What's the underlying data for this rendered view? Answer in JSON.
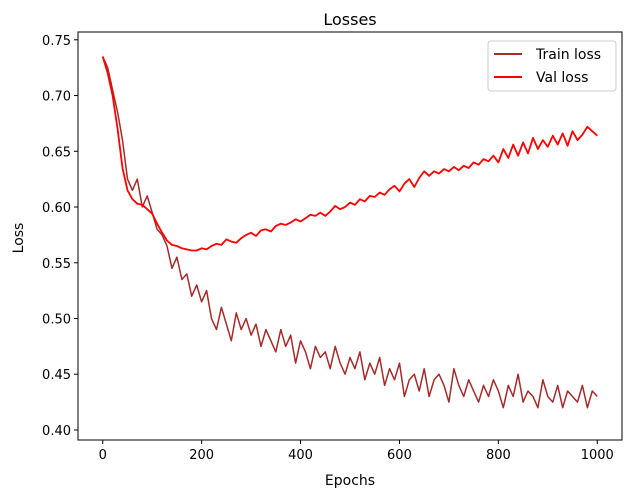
{
  "chart_data": {
    "type": "line",
    "title": "Losses",
    "xlabel": "Epochs",
    "ylabel": "Loss",
    "xlim": [
      -50,
      1050
    ],
    "ylim": [
      0.391,
      0.757
    ],
    "xticks": [
      0,
      200,
      400,
      600,
      800,
      1000
    ],
    "xtick_labels": [
      "0",
      "200",
      "400",
      "600",
      "800",
      "1000"
    ],
    "yticks": [
      0.4,
      0.45,
      0.5,
      0.55,
      0.6,
      0.65,
      0.7,
      0.75
    ],
    "ytick_labels": [
      "0.40",
      "0.45",
      "0.50",
      "0.55",
      "0.60",
      "0.65",
      "0.70",
      "0.75"
    ],
    "grid": false,
    "legend_position": "top-right",
    "x_start": 0,
    "x_step": 10,
    "series": [
      {
        "name": "Train loss",
        "color": "#a52a2a",
        "values": [
          0.735,
          0.725,
          0.705,
          0.685,
          0.66,
          0.625,
          0.615,
          0.625,
          0.6,
          0.61,
          0.595,
          0.58,
          0.575,
          0.565,
          0.545,
          0.555,
          0.535,
          0.54,
          0.52,
          0.53,
          0.515,
          0.525,
          0.5,
          0.49,
          0.51,
          0.495,
          0.48,
          0.505,
          0.49,
          0.5,
          0.485,
          0.495,
          0.475,
          0.49,
          0.48,
          0.47,
          0.49,
          0.475,
          0.485,
          0.46,
          0.48,
          0.47,
          0.455,
          0.475,
          0.465,
          0.47,
          0.455,
          0.475,
          0.46,
          0.45,
          0.465,
          0.455,
          0.47,
          0.445,
          0.46,
          0.45,
          0.465,
          0.44,
          0.455,
          0.445,
          0.46,
          0.43,
          0.445,
          0.45,
          0.435,
          0.455,
          0.43,
          0.445,
          0.45,
          0.44,
          0.425,
          0.455,
          0.44,
          0.43,
          0.445,
          0.435,
          0.425,
          0.44,
          0.43,
          0.445,
          0.435,
          0.42,
          0.44,
          0.43,
          0.45,
          0.425,
          0.435,
          0.43,
          0.42,
          0.445,
          0.43,
          0.425,
          0.44,
          0.42,
          0.435,
          0.43,
          0.425,
          0.44,
          0.42,
          0.435,
          0.43
        ]
      },
      {
        "name": "Val loss",
        "color": "#ff0000",
        "values": [
          0.735,
          0.72,
          0.7,
          0.67,
          0.635,
          0.615,
          0.607,
          0.603,
          0.602,
          0.598,
          0.594,
          0.585,
          0.577,
          0.57,
          0.566,
          0.565,
          0.563,
          0.562,
          0.561,
          0.561,
          0.563,
          0.562,
          0.565,
          0.567,
          0.566,
          0.571,
          0.569,
          0.568,
          0.572,
          0.575,
          0.577,
          0.574,
          0.579,
          0.58,
          0.578,
          0.583,
          0.585,
          0.584,
          0.586,
          0.589,
          0.587,
          0.59,
          0.593,
          0.592,
          0.595,
          0.592,
          0.596,
          0.601,
          0.598,
          0.6,
          0.604,
          0.602,
          0.607,
          0.605,
          0.61,
          0.609,
          0.613,
          0.611,
          0.616,
          0.619,
          0.614,
          0.621,
          0.625,
          0.618,
          0.626,
          0.632,
          0.628,
          0.632,
          0.63,
          0.634,
          0.632,
          0.636,
          0.633,
          0.637,
          0.635,
          0.64,
          0.638,
          0.643,
          0.641,
          0.646,
          0.64,
          0.652,
          0.644,
          0.656,
          0.646,
          0.658,
          0.648,
          0.662,
          0.652,
          0.66,
          0.654,
          0.664,
          0.656,
          0.666,
          0.655,
          0.668,
          0.66,
          0.665,
          0.672,
          0.668,
          0.664
        ]
      }
    ]
  }
}
